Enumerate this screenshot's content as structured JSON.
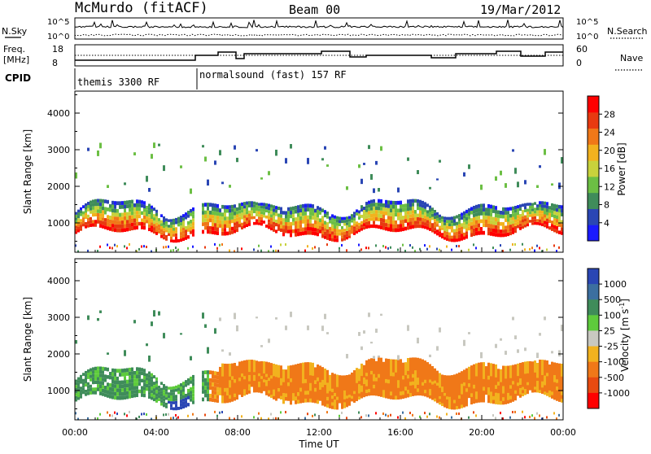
{
  "header": {
    "station": "McMurdo (fitACF)",
    "beam": "Beam 00",
    "date": "19/Mar/2012"
  },
  "top_panels": {
    "nsky_label": "N.Sky",
    "nsearch_label": "N.Search",
    "nsky_ticks": [
      "10^5",
      "10^0"
    ],
    "nsearch_ticks": [
      "10^5",
      "10^0"
    ],
    "freq_label_line1": "Freq.",
    "freq_label_line2": "[MHz]",
    "freq_ticks": [
      "18",
      "8"
    ],
    "nave_label": "Nave",
    "nave_ticks": [
      "60",
      "0"
    ],
    "cpid_label": "CPID",
    "cpid_segments": [
      {
        "label": "themis 3300 RF",
        "start_hour": 0
      },
      {
        "label": "normalsound (fast) 157 RF",
        "start_hour": 6
      }
    ]
  },
  "colors": {
    "power": [
      "#1a1aff",
      "#2a46b4",
      "#3f8c5a",
      "#6cbf44",
      "#c8d23c",
      "#f2b21e",
      "#f07818",
      "#e83a10",
      "#ff0000"
    ],
    "velocity": [
      "#2a46b4",
      "#3c6fa0",
      "#3f8c5a",
      "#5ecb3c",
      "#c8c8c0",
      "#f2b21e",
      "#f07818",
      "#e84a10",
      "#ff0000"
    ]
  },
  "chart_data": [
    {
      "type": "heatmap",
      "name": "power",
      "ylabel": "Slant Range [km]",
      "ylim": [
        200,
        4600
      ],
      "yticks": [
        1000,
        2000,
        3000,
        4000
      ],
      "xlim": [
        0,
        24
      ],
      "colorbar_label": "Power [dB]",
      "colorbar_ticks": [
        4,
        8,
        12,
        16,
        20,
        24,
        28
      ],
      "colorbar_range": [
        0,
        32
      ]
    },
    {
      "type": "heatmap",
      "name": "velocity",
      "ylabel": "Slant Range [km]",
      "ylim": [
        200,
        4600
      ],
      "yticks": [
        1000,
        2000,
        3000,
        4000
      ],
      "xlim": [
        0,
        24
      ],
      "xlabel": "Time UT",
      "xticks": [
        "00:00",
        "04:00",
        "08:00",
        "12:00",
        "16:00",
        "20:00",
        "00:00"
      ],
      "colorbar_label": "Velocity [m s",
      "colorbar_label_sup": "-1",
      "colorbar_label_tail": "]",
      "colorbar_ticks": [
        "1000",
        "500",
        "100",
        "25",
        "-25",
        "-100",
        "-500",
        "-1000"
      ]
    }
  ]
}
